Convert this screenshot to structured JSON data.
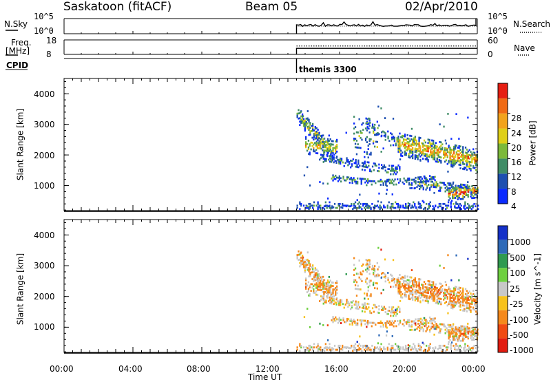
{
  "header": {
    "station": "Saskatoon (fitACF)",
    "beam": "Beam 05",
    "date": "02/Apr/2010"
  },
  "chart_data": [
    {
      "type": "line",
      "panel": "noise",
      "left_label": "N.Sky",
      "right_label": "N.Search",
      "left_ticks": [
        "10^5",
        "10^0"
      ],
      "right_ticks": [
        "10^5",
        "10^0"
      ],
      "data_start_hour": 13.5,
      "series": [
        {
          "style": "solid",
          "level_frac": 0.55
        },
        {
          "style": "dotted",
          "level_frac": 0.5
        }
      ]
    },
    {
      "type": "line",
      "panel": "frequency-nave",
      "left_label_top": "Freq.",
      "left_label_bottom": "[MHz]",
      "right_label": "Nave",
      "left_ticks": [
        "18",
        "8"
      ],
      "right_ticks": [
        "60",
        "0"
      ],
      "data_start_hour": 13.5,
      "series": [
        {
          "style": "dotted",
          "level_frac": 0.58
        },
        {
          "style": "solid",
          "level_frac": 0.42
        }
      ]
    },
    {
      "type": "table",
      "panel": "cpid",
      "label": "CPID",
      "annotations": [
        {
          "hour": 13.5,
          "text": "themis 3300"
        }
      ]
    },
    {
      "type": "heatmap",
      "panel": "power",
      "ylabel": "Slant Range [km]",
      "yticks": [
        1000,
        2000,
        3000,
        4000
      ],
      "ylim": [
        180,
        4500
      ],
      "xlim": [
        0,
        24
      ],
      "colorbar_label": "Power [dB]",
      "colorbar_ticks": [
        "4",
        "8",
        "12",
        "16",
        "20",
        "24",
        "28"
      ],
      "colors": [
        "#0b2aff",
        "#1d4fb0",
        "#3f8c66",
        "#7cb93a",
        "#dfcf18",
        "#f2a31c",
        "#f06a14",
        "#e61e12"
      ]
    },
    {
      "type": "heatmap",
      "panel": "velocity",
      "ylabel": "Slant Range [km]",
      "yticks": [
        1000,
        2000,
        3000,
        4000
      ],
      "ylim": [
        180,
        4500
      ],
      "xlim": [
        0,
        24
      ],
      "xticks": [
        "00:00",
        "04:00",
        "08:00",
        "12:00",
        "16:00",
        "20:00",
        "00:00"
      ],
      "xlabel": "Time UT",
      "colorbar_label": "Velocity [m s^-1]",
      "colorbar_ticks": [
        "1000",
        "500",
        "100",
        "25",
        "-25",
        "-100",
        "-500",
        "-1000"
      ],
      "colors": [
        "#1530c8",
        "#2e6ab8",
        "#2f9a50",
        "#6ed040",
        "#c8c8c8",
        "#f7c21c",
        "#f5891c",
        "#f04a12",
        "#e21c10"
      ]
    }
  ]
}
